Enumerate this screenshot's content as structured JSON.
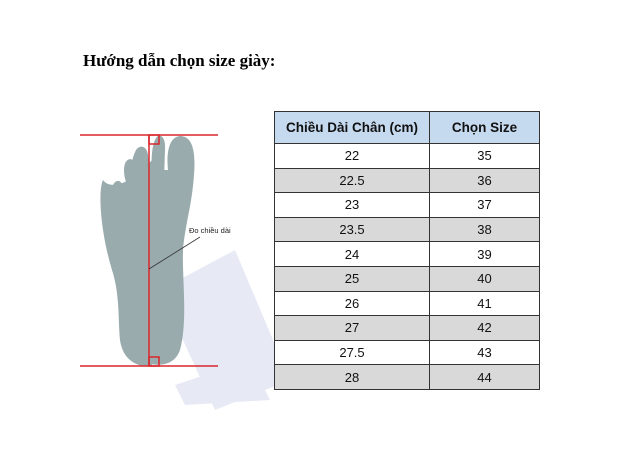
{
  "title": "Hướng dẫn chọn size giày:",
  "figure": {
    "label": "Đo chiều dài",
    "line_color": "#d9262c",
    "foot_color": "#9aabad"
  },
  "table": {
    "headers": [
      "Chiều Dài Chân (cm)",
      "Chọn Size"
    ],
    "header_bg": "#c5d9ef",
    "rows": [
      [
        "22",
        "35"
      ],
      [
        "22.5",
        "36"
      ],
      [
        "23",
        "37"
      ],
      [
        "23.5",
        "38"
      ],
      [
        "24",
        "39"
      ],
      [
        "25",
        "40"
      ],
      [
        "26",
        "41"
      ],
      [
        "27",
        "42"
      ],
      [
        "27.5",
        "43"
      ],
      [
        "28",
        "44"
      ]
    ]
  }
}
